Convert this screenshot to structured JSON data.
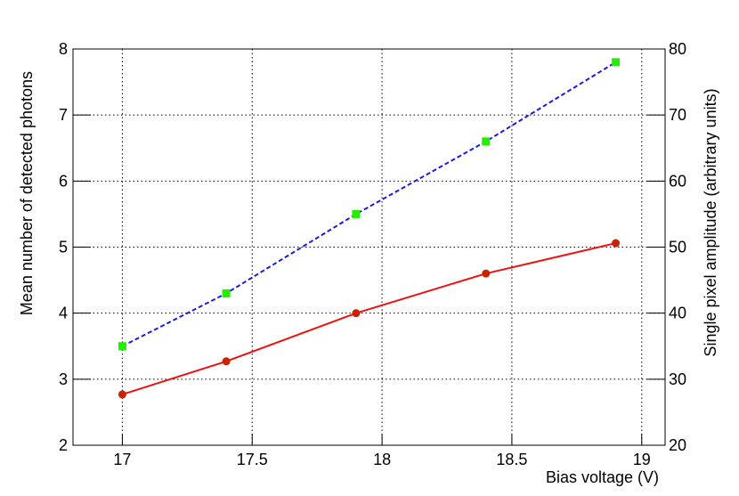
{
  "chart_data": {
    "type": "line",
    "x_label": "Bias voltage (V)",
    "y_label": "Mean number of detected photons",
    "y2_label": "Single pixel amplitude (arbitrary units)",
    "x": [
      17,
      17.4,
      17.9,
      18.4,
      18.9
    ],
    "series": [
      {
        "color": "#ee1111",
        "marker_color": "#cc2200",
        "marker": "circle",
        "dashed": false,
        "values": [
          2.77,
          3.27,
          4.0,
          4.6,
          5.06
        ]
      },
      {
        "color": "#1a1ae6",
        "marker_color": "#22ee00",
        "marker": "square",
        "dashed": true,
        "axis": "y2",
        "values": [
          35,
          43,
          55,
          66,
          78
        ]
      }
    ],
    "xlim": [
      16.81,
      19.09
    ],
    "xticks": [
      17,
      17.5,
      18,
      18.5,
      19
    ],
    "ylim": [
      2,
      8
    ],
    "yticks": [
      2,
      3,
      4,
      5,
      6,
      7,
      8
    ],
    "y2lim": [
      20,
      80
    ],
    "y2ticks": [
      20,
      30,
      40,
      50,
      60,
      70,
      80
    ],
    "grid": true
  }
}
